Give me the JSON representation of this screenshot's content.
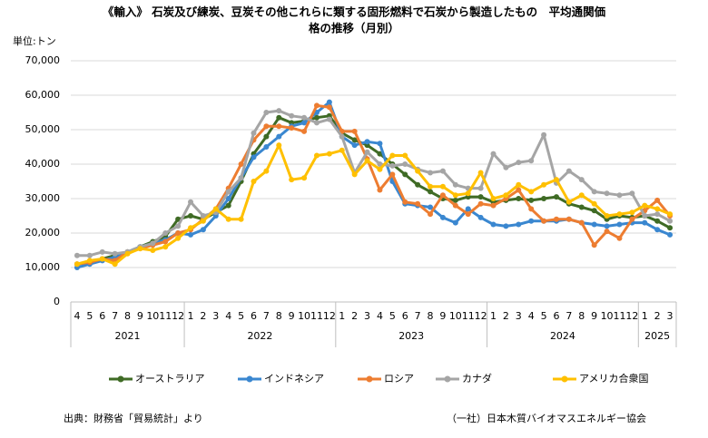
{
  "chart_data": {
    "type": "line",
    "title_lines": [
      "《輸入》 石炭及び練炭、豆炭その他これらに類する固形燃料で石炭から製造したもの　平均通関価",
      "格の推移（月別）"
    ],
    "unit_label": "単位:トン",
    "categories": [
      "4",
      "5",
      "6",
      "7",
      "8",
      "9",
      "10",
      "11",
      "12",
      "1",
      "2",
      "3",
      "4",
      "5",
      "6",
      "7",
      "8",
      "9",
      "10",
      "11",
      "12",
      "1",
      "2",
      "3",
      "4",
      "5",
      "6",
      "7",
      "8",
      "9",
      "10",
      "11",
      "12",
      "1",
      "2",
      "3",
      "4",
      "5",
      "6",
      "7",
      "8",
      "9",
      "10",
      "11",
      "12",
      "1",
      "2",
      "3"
    ],
    "years": [
      "2021",
      "2022",
      "2023",
      "2024",
      "2025"
    ],
    "ylim": [
      0,
      70000
    ],
    "yticks": [
      0,
      {
        "value": 10000,
        "label": "10,000"
      },
      {
        "value": 20000,
        "label": "20,000"
      },
      {
        "value": 30000,
        "label": "30,000"
      },
      {
        "value": 40000,
        "label": "40,000"
      },
      {
        "value": 50000,
        "label": "50,000"
      },
      {
        "value": 60000,
        "label": "60,000"
      },
      {
        "value": 70000,
        "label": "70,000"
      }
    ],
    "grid": true,
    "series": [
      {
        "name": "オーストラリア",
        "color": "#3f6b25",
        "values": [
          11000,
          11500,
          12500,
          13500,
          14500,
          16000,
          17500,
          19000,
          24000,
          25000,
          24000,
          26000,
          28000,
          35000,
          43000,
          48000,
          53500,
          52000,
          52500,
          53500,
          54000,
          49000,
          47000,
          45500,
          43000,
          40000,
          37000,
          34000,
          32000,
          30000,
          29500,
          30500,
          30500,
          29000,
          29500,
          30000,
          29500,
          30000,
          30500,
          28500,
          27500,
          26500,
          24000,
          25000,
          24500,
          25000,
          23500,
          21500
        ]
      },
      {
        "name": "インドネシア",
        "color": "#3a87d0",
        "values": [
          10000,
          11000,
          12000,
          13000,
          14500,
          16000,
          17000,
          18000,
          20000,
          19500,
          21000,
          25000,
          30000,
          36000,
          42000,
          45000,
          48000,
          51000,
          52000,
          55000,
          58000,
          48000,
          45500,
          46500,
          46000,
          35000,
          28500,
          28000,
          27500,
          24500,
          23000,
          27000,
          24500,
          22500,
          22000,
          22500,
          23500,
          23500,
          23500,
          24000,
          23000,
          22500,
          22000,
          22500,
          23000,
          23000,
          21000,
          19500
        ]
      },
      {
        "name": "ロシア",
        "color": "#ed7d31",
        "values": [
          11000,
          11500,
          12500,
          12000,
          14500,
          15500,
          16500,
          17500,
          20000,
          21000,
          24000,
          27000,
          33000,
          40000,
          47000,
          51000,
          51000,
          50500,
          49500,
          57000,
          56500,
          49500,
          49500,
          41500,
          32500,
          37000,
          29000,
          28500,
          25500,
          31000,
          28000,
          25500,
          28500,
          28000,
          30000,
          32500,
          27000,
          23500,
          24000,
          24000,
          23000,
          16500,
          20500,
          18500,
          24000,
          26500,
          29500,
          25000
        ]
      },
      {
        "name": "カナダ",
        "color": "#a5a5a5",
        "values": [
          13500,
          13500,
          14500,
          14000,
          14500,
          16000,
          17000,
          20000,
          22000,
          29000,
          25000,
          26000,
          32000,
          36000,
          49000,
          55000,
          55500,
          54000,
          53500,
          52000,
          53000,
          48000,
          37500,
          43500,
          40000,
          39500,
          40000,
          38500,
          37500,
          38000,
          34000,
          33000,
          33000,
          43000,
          39000,
          40500,
          41000,
          48500,
          34500,
          38000,
          35500,
          32000,
          31500,
          31000,
          31500,
          25000,
          25500,
          23500
        ]
      },
      {
        "name": "アメリカ合衆国",
        "color": "#ffc000",
        "values": [
          11000,
          12000,
          12500,
          11000,
          14000,
          15500,
          15000,
          16000,
          18500,
          21500,
          23500,
          27000,
          24000,
          24000,
          35000,
          38000,
          45500,
          35500,
          36000,
          42500,
          43000,
          44000,
          37000,
          41000,
          38500,
          42500,
          42500,
          38000,
          33500,
          33500,
          31000,
          31500,
          37500,
          30000,
          31000,
          34000,
          32000,
          34000,
          35500,
          29000,
          31000,
          28500,
          25000,
          25500,
          26000,
          28000,
          27000,
          25500
        ]
      }
    ],
    "source": "出典：財務省「貿易統計」より",
    "credit": "（一社）日本木質バイオマスエネルギー協会"
  }
}
